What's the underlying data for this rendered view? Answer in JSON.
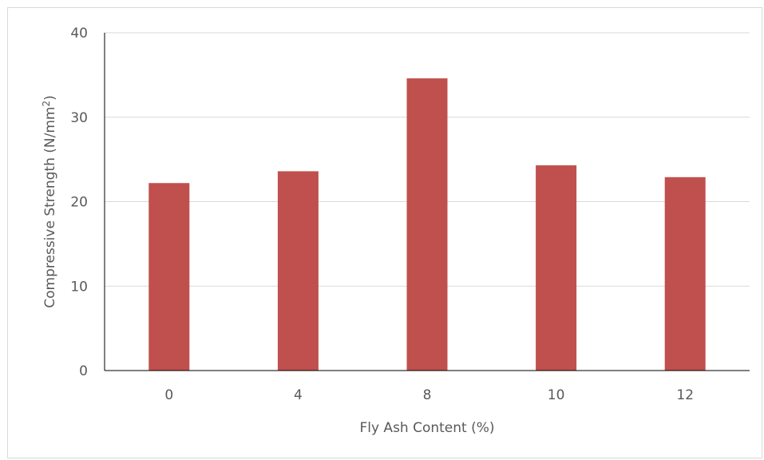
{
  "chart_data": {
    "type": "bar",
    "categories": [
      "0",
      "4",
      "8",
      "10",
      "12"
    ],
    "values": [
      22.2,
      23.6,
      34.6,
      24.3,
      22.9
    ],
    "title": "",
    "xlabel": "Fly Ash Content (%)",
    "ylabel_main": "Compressive Strength (N/mm",
    "ylabel_sup": "2",
    "ylabel_end": ")",
    "ylim": [
      0,
      40
    ],
    "yticks": [
      "0",
      "10",
      "20",
      "30",
      "40"
    ],
    "grid": true,
    "legend": "none",
    "colors": {
      "bar": "#c0504d",
      "grid": "#d9d9d9",
      "axis": "#000000",
      "text": "#595959"
    }
  }
}
